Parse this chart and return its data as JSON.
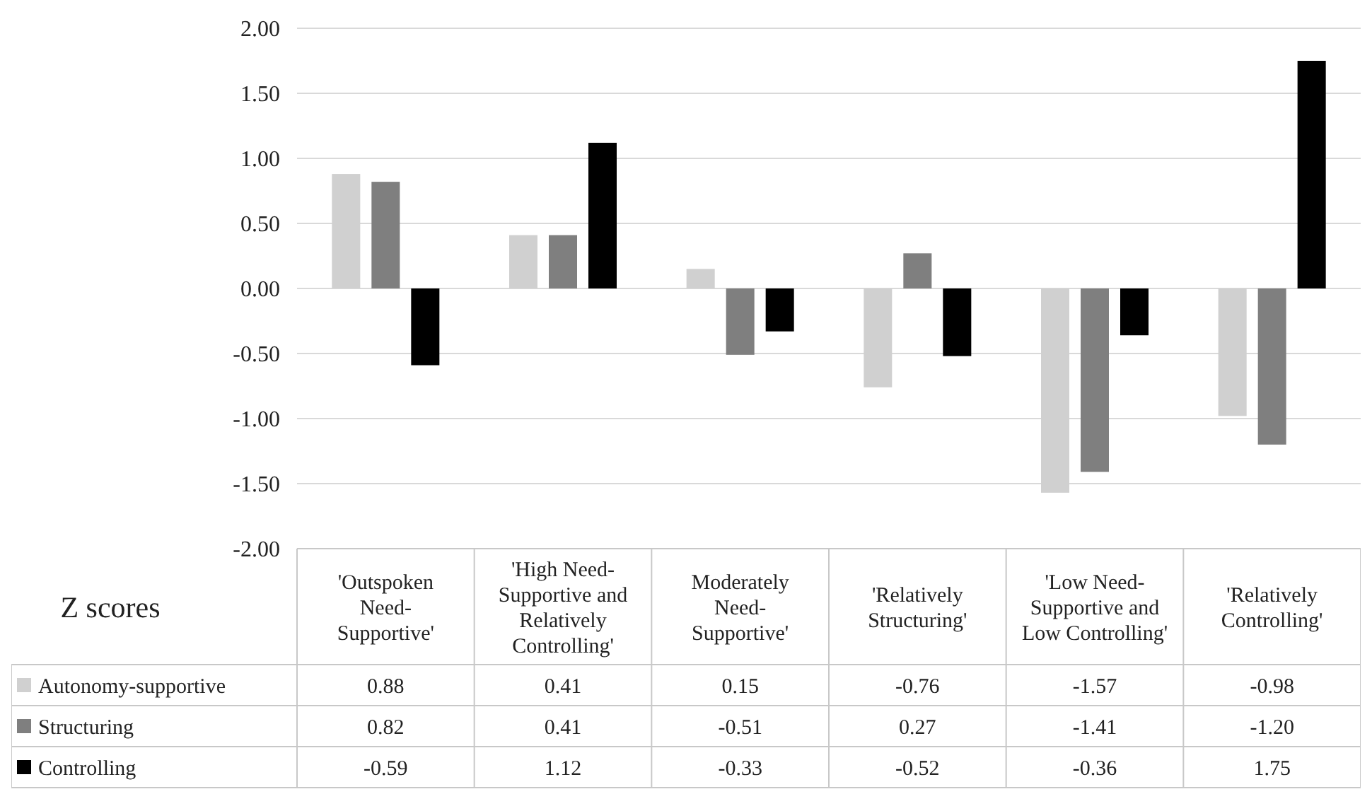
{
  "chart_data": {
    "type": "bar",
    "ylabel": "Z scores",
    "categories": [
      "'Outspoken Need-Supportive'",
      "'High Need-Supportive and Relatively Controlling'",
      "Moderately Need-Supportive'",
      "'Relatively Structuring'",
      "'Low Need-Supportive and Low Controlling'",
      "'Relatively Controlling'"
    ],
    "series": [
      {
        "name": "Autonomy-supportive",
        "color": "#d0d0d0",
        "values": [
          0.88,
          0.41,
          0.15,
          -0.76,
          -1.57,
          -0.98
        ],
        "value_labels": [
          "0.88",
          "0.41",
          "0.15",
          "-0.76",
          "-1.57",
          "-0.98"
        ]
      },
      {
        "name": "Structuring",
        "color": "#7f7f7f",
        "values": [
          0.82,
          0.41,
          -0.51,
          0.27,
          -1.41,
          -1.2
        ],
        "value_labels": [
          "0.82",
          "0.41",
          "-0.51",
          "0.27",
          "-1.41",
          "-1.20"
        ]
      },
      {
        "name": "Controlling",
        "color": "#000000",
        "values": [
          -0.59,
          1.12,
          -0.33,
          -0.52,
          -0.36,
          1.75
        ],
        "value_labels": [
          "-0.59",
          "1.12",
          "-0.33",
          "-0.52",
          "-0.36",
          "1.75"
        ]
      }
    ],
    "ylim": [
      -2,
      2
    ],
    "yticks": [
      {
        "value": -2,
        "label": "-2.00"
      },
      {
        "value": -1.5,
        "label": "-1.50"
      },
      {
        "value": -1,
        "label": "-1.00"
      },
      {
        "value": -0.5,
        "label": "-0.50"
      },
      {
        "value": 0,
        "label": "0.00"
      },
      {
        "value": 0.5,
        "label": "0.50"
      },
      {
        "value": 1,
        "label": "1.00"
      },
      {
        "value": 1.5,
        "label": "1.50"
      },
      {
        "value": 2,
        "label": "2.00"
      }
    ],
    "grid": "y",
    "legend": "bottom"
  }
}
